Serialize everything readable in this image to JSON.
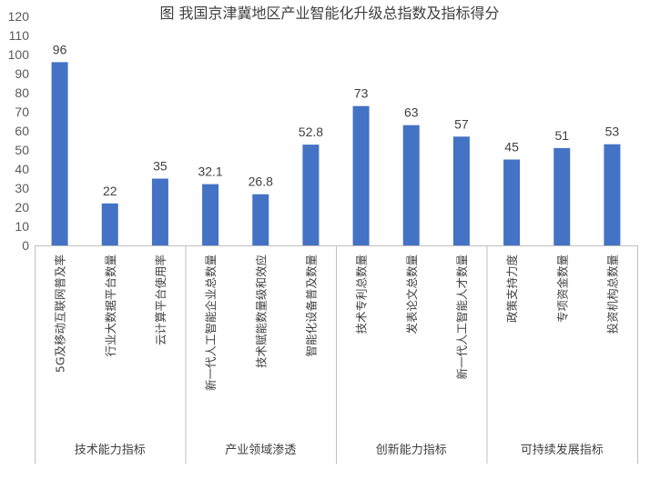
{
  "chart_data": {
    "type": "bar",
    "title": "图  我国京津冀地区产业智能化升级总指数及指标得分",
    "ylim": [
      0,
      120
    ],
    "yticks": [
      0,
      10,
      20,
      30,
      40,
      50,
      60,
      70,
      80,
      90,
      100,
      110,
      120
    ],
    "grid": false,
    "bar_color": "#4472c4",
    "categories": [
      "5G及移动互联网普及率",
      "行业大数据平台数量",
      "云计算平台使用率",
      "新一代人工智能企业总数量",
      "技术赋能数量级和效应",
      "智能化设备普及数量",
      "技术专利总数量",
      "发表论文总数量",
      "新一代人工智能人才数量",
      "政策支持力度",
      "专项资金数量",
      "投资机构总数量"
    ],
    "values": [
      96,
      22,
      35,
      32.1,
      26.8,
      52.8,
      73,
      63,
      57,
      45,
      51,
      53
    ],
    "value_labels": [
      "96",
      "22",
      "35",
      "32.1",
      "26.8",
      "52.8",
      "73",
      "63",
      "57",
      "45",
      "51",
      "53"
    ],
    "groups": [
      {
        "label": "技术能力指标",
        "count": 3
      },
      {
        "label": "产业领域渗透",
        "count": 3
      },
      {
        "label": "创新能力指标",
        "count": 3
      },
      {
        "label": "可持续发展指标",
        "count": 3
      }
    ]
  }
}
